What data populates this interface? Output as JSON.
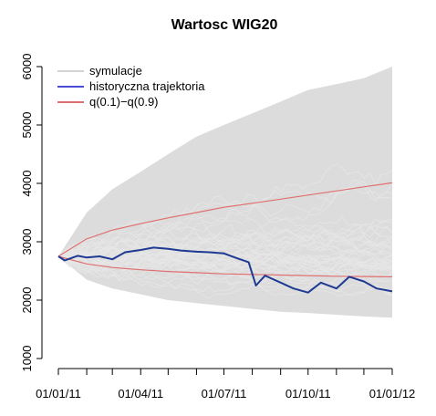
{
  "chart_data": {
    "type": "line",
    "title": "Wartosc WIG20",
    "xlabel": "",
    "ylabel": "",
    "x_domain": [
      "2011-01-01",
      "2012-01-01"
    ],
    "ylim": [
      1000,
      6000
    ],
    "y_ticks": [
      1000,
      2000,
      3000,
      4000,
      5000,
      6000
    ],
    "x_ticks": [
      {
        "date": "2011-01-01",
        "label": "01/01/11"
      },
      {
        "date": "2011-04-01",
        "label": "01/04/11"
      },
      {
        "date": "2011-07-01",
        "label": "01/07/11"
      },
      {
        "date": "2011-10-01",
        "label": "01/10/11"
      },
      {
        "date": "2012-01-01",
        "label": "01/01/12"
      }
    ],
    "x_minor_ticks": [
      "2011-02-01",
      "2011-03-01",
      "2011-05-01",
      "2011-06-01",
      "2011-08-01",
      "2011-09-01",
      "2011-11-01",
      "2011-12-01"
    ],
    "grid": false,
    "legend_position": "top-left",
    "legend": [
      {
        "label": "symulacje",
        "color": "#d3d3d3"
      },
      {
        "label": "historyczna trajektoria",
        "color": "#4b4bd8"
      },
      {
        "label": "q(0.1)−q(0.9)",
        "color": "#e07070"
      }
    ],
    "simulation_band": {
      "color": "#d3d3d3",
      "x": [
        "2011-01-01",
        "2011-02-01",
        "2011-03-01",
        "2011-04-01",
        "2011-05-01",
        "2011-06-01",
        "2011-07-01",
        "2011-08-01",
        "2011-09-01",
        "2011-10-01",
        "2011-11-01",
        "2011-12-01",
        "2012-01-01"
      ],
      "min": [
        2750,
        2350,
        2200,
        2100,
        2000,
        1950,
        1900,
        1850,
        1800,
        1780,
        1750,
        1720,
        1700
      ],
      "max": [
        2750,
        3500,
        3900,
        4200,
        4500,
        4800,
        5000,
        5200,
        5400,
        5600,
        5700,
        5800,
        6000
      ]
    },
    "series": [
      {
        "name": "q(0.9)",
        "color": "#e07070",
        "x": [
          "2011-01-01",
          "2011-02-01",
          "2011-03-01",
          "2011-04-01",
          "2011-05-01",
          "2011-06-01",
          "2011-07-01",
          "2011-08-01",
          "2011-09-01",
          "2011-10-01",
          "2011-11-01",
          "2011-12-01",
          "2012-01-01"
        ],
        "values": [
          2750,
          3050,
          3200,
          3310,
          3410,
          3500,
          3590,
          3660,
          3730,
          3800,
          3870,
          3940,
          4010
        ]
      },
      {
        "name": "q(0.1)",
        "color": "#e07070",
        "x": [
          "2011-01-01",
          "2011-02-01",
          "2011-03-01",
          "2011-04-01",
          "2011-05-01",
          "2011-06-01",
          "2011-07-01",
          "2011-08-01",
          "2011-09-01",
          "2011-10-01",
          "2011-11-01",
          "2011-12-01",
          "2012-01-01"
        ],
        "values": [
          2750,
          2620,
          2560,
          2520,
          2490,
          2470,
          2450,
          2440,
          2430,
          2420,
          2410,
          2405,
          2400
        ]
      },
      {
        "name": "historyczna trajektoria",
        "color": "#1f3a93",
        "x": [
          "2011-01-01",
          "2011-01-08",
          "2011-01-15",
          "2011-01-22",
          "2011-02-01",
          "2011-02-15",
          "2011-03-01",
          "2011-03-15",
          "2011-04-01",
          "2011-04-15",
          "2011-05-01",
          "2011-05-15",
          "2011-06-01",
          "2011-06-15",
          "2011-07-01",
          "2011-07-15",
          "2011-07-28",
          "2011-08-05",
          "2011-08-15",
          "2011-09-01",
          "2011-09-15",
          "2011-10-01",
          "2011-10-15",
          "2011-11-01",
          "2011-11-15",
          "2011-12-01",
          "2011-12-15",
          "2012-01-01"
        ],
        "values": [
          2750,
          2680,
          2720,
          2760,
          2730,
          2750,
          2700,
          2820,
          2860,
          2900,
          2880,
          2850,
          2830,
          2820,
          2800,
          2720,
          2650,
          2250,
          2420,
          2300,
          2200,
          2130,
          2300,
          2200,
          2400,
          2320,
          2200,
          2150
        ]
      }
    ]
  }
}
